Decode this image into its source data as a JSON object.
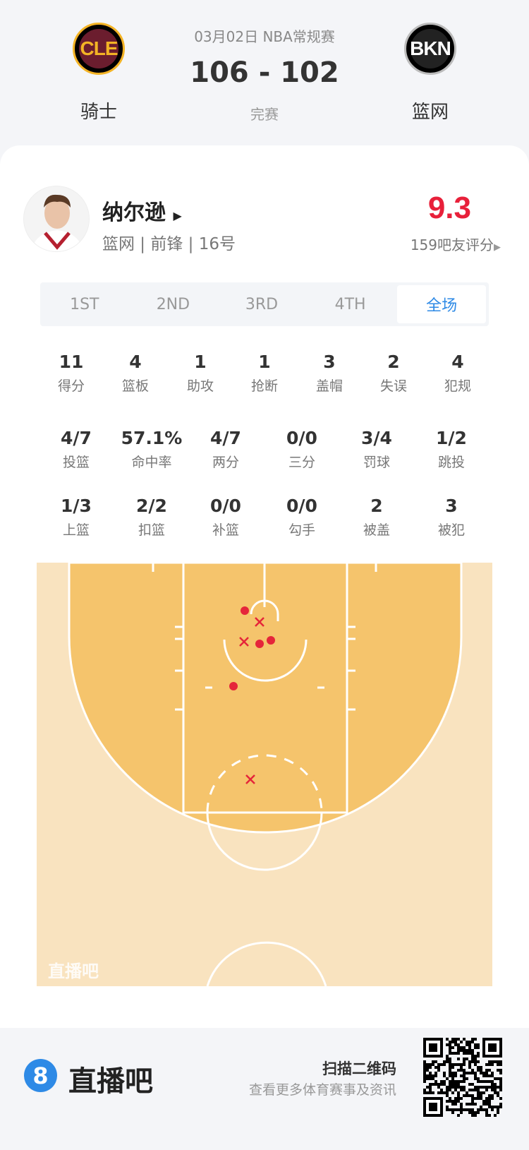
{
  "match": {
    "date_league": "03月02日 NBA常规赛",
    "score": "106 - 102",
    "status": "完赛",
    "home": {
      "abbr": "CLE",
      "name": "骑士"
    },
    "away": {
      "abbr": "BKN",
      "name": "篮网"
    }
  },
  "player": {
    "name": "纳尔逊",
    "info": "篮网 | 前锋 | 16号",
    "rating": "9.3",
    "rating_label": "159吧友评分",
    "rating_color": "#e8203a"
  },
  "tabs": [
    {
      "label": "1ST"
    },
    {
      "label": "2ND"
    },
    {
      "label": "3RD"
    },
    {
      "label": "4TH"
    },
    {
      "label": "全场",
      "active": true
    }
  ],
  "stats_row1": [
    {
      "v": "11",
      "l": "得分"
    },
    {
      "v": "4",
      "l": "篮板"
    },
    {
      "v": "1",
      "l": "助攻"
    },
    {
      "v": "1",
      "l": "抢断"
    },
    {
      "v": "3",
      "l": "盖帽"
    },
    {
      "v": "2",
      "l": "失误"
    },
    {
      "v": "4",
      "l": "犯规"
    }
  ],
  "stats_row2": [
    {
      "v": "4/7",
      "l": "投篮"
    },
    {
      "v": "57.1%",
      "l": "命中率"
    },
    {
      "v": "4/7",
      "l": "两分"
    },
    {
      "v": "0/0",
      "l": "三分"
    },
    {
      "v": "3/4",
      "l": "罚球"
    },
    {
      "v": "1/2",
      "l": "跳投"
    }
  ],
  "stats_row3": [
    {
      "v": "1/3",
      "l": "上篮"
    },
    {
      "v": "2/2",
      "l": "扣篮"
    },
    {
      "v": "0/0",
      "l": "补篮"
    },
    {
      "v": "0/0",
      "l": "勾手"
    },
    {
      "v": "2",
      "l": "被盖"
    },
    {
      "v": "3",
      "l": "被犯"
    }
  ],
  "shot_chart": {
    "watermark": "直播吧",
    "shots": [
      {
        "result": "made"
      },
      {
        "result": "missed"
      },
      {
        "result": "missed"
      },
      {
        "result": "made"
      },
      {
        "result": "made"
      },
      {
        "result": "made"
      },
      {
        "result": "missed"
      }
    ]
  },
  "footer": {
    "brand": "直播吧",
    "brand_icon": "8",
    "qr_title": "扫描二维码",
    "qr_sub": "查看更多体育赛事及资讯",
    "accent": "#2e8ae6"
  }
}
